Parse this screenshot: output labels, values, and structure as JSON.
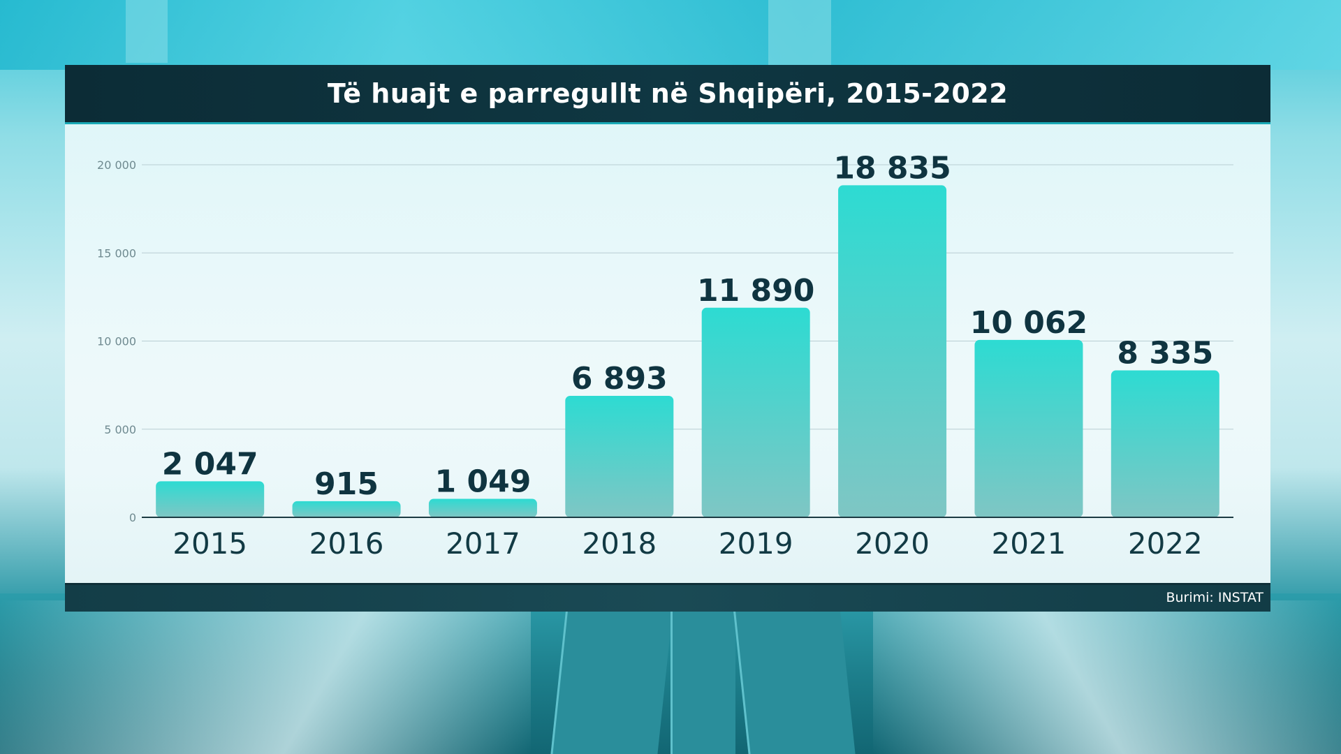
{
  "header": {
    "title": "Të huajt e parregullt në Shqipëri, 2015-2022"
  },
  "footer": {
    "source": "Burimi: INSTAT"
  },
  "colors": {
    "bar_top": "#2ddbd2",
    "bar_bottom": "#7fc6c4",
    "title_bg": "#0f3742",
    "label": "#0f3440"
  },
  "chart_data": {
    "type": "bar",
    "title": "Të huajt e parregullt në Shqipëri, 2015-2022",
    "categories": [
      "2015",
      "2016",
      "2017",
      "2018",
      "2019",
      "2020",
      "2021",
      "2022"
    ],
    "values": [
      2047,
      915,
      1049,
      6893,
      11890,
      18835,
      10062,
      8335
    ],
    "value_labels": [
      "2 047",
      "915",
      "1 049",
      "6 893",
      "11 890",
      "18 835",
      "10 062",
      "8 335"
    ],
    "yticks": [
      0,
      5000,
      10000,
      15000,
      20000
    ],
    "ytick_labels": [
      "0",
      "5 000",
      "10 000",
      "15 000",
      "20 000"
    ],
    "ylim": [
      0,
      20000
    ],
    "grid": true,
    "legend": "none",
    "xlabel": "",
    "ylabel": ""
  }
}
